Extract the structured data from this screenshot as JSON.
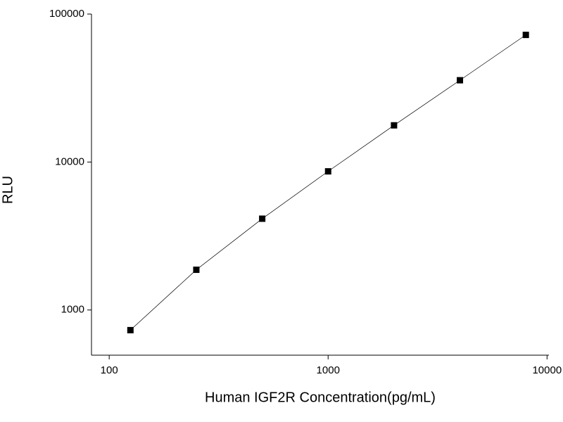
{
  "chart_data": {
    "type": "line",
    "x_label": "Human IGF2R Concentration(pg/mL)",
    "y_label": "RLU",
    "x": [
      125,
      250,
      500,
      1000,
      2000,
      4000,
      8000
    ],
    "series": [
      {
        "color": "#000000",
        "values": [
          731,
          1870,
          4140,
          8650,
          17700,
          35700,
          72300
        ]
      }
    ],
    "xscale": "log",
    "yscale": "log",
    "xlim": [
      83,
      10200
    ],
    "ylim": [
      495,
      100000
    ],
    "xticks": [
      100,
      1000,
      10000
    ],
    "yticks": [
      1000,
      10000,
      100000
    ],
    "grid": false
  }
}
